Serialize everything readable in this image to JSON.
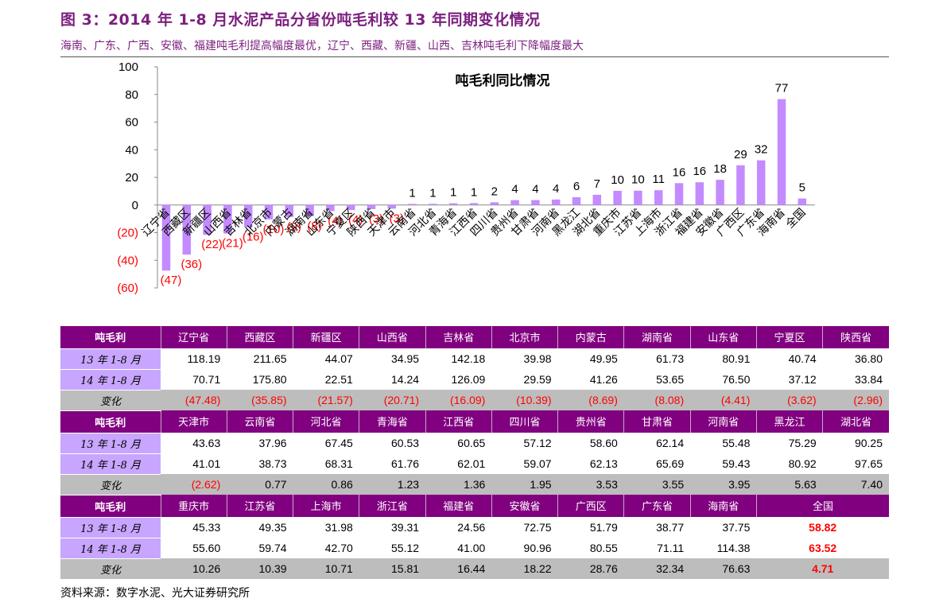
{
  "header": {
    "title": "图 3：2014 年 1-8 月水泥产品分省份吨毛利较 13 年同期变化情况",
    "subtitle": "海南、广东、广西、安徽、福建吨毛利提高幅度最优，辽宁、西藏、新疆、山西、吉林吨毛利下降幅度最大"
  },
  "chart_data": {
    "type": "bar",
    "title": "吨毛利同比情况",
    "xlabel": "",
    "ylabel": "",
    "ylim": [
      -60,
      100
    ],
    "yticks": [
      -60,
      -40,
      -20,
      0,
      20,
      40,
      60,
      80,
      100
    ],
    "ytick_labels": [
      "(60)",
      "(40)",
      "(20)",
      "0",
      "20",
      "40",
      "60",
      "80",
      "100"
    ],
    "grid": false,
    "bar_color": "#c38bff",
    "negative_label_color": "#ff0000",
    "categories": [
      "辽宁省",
      "西藏区",
      "新疆区",
      "山西省",
      "吉林省",
      "北京市",
      "内蒙古",
      "湖南省",
      "山东省",
      "宁夏区",
      "陕西省",
      "天津市",
      "云南省",
      "河北省",
      "青海省",
      "江西省",
      "四川省",
      "贵州省",
      "甘肃省",
      "河南省",
      "黑龙江",
      "湖北省",
      "重庆市",
      "江苏省",
      "上海市",
      "浙江省",
      "福建省",
      "安徽省",
      "广西区",
      "广东省",
      "海南省",
      "全国"
    ],
    "values": [
      -47.48,
      -35.85,
      -21.57,
      -20.71,
      -16.09,
      -10.39,
      -8.69,
      -8.08,
      -4.41,
      -3.62,
      -2.96,
      -2.62,
      0.77,
      0.86,
      1.23,
      1.36,
      1.95,
      3.53,
      3.55,
      3.95,
      5.63,
      7.4,
      10.26,
      10.39,
      10.71,
      15.81,
      16.44,
      18.22,
      28.76,
      32.34,
      76.63,
      4.71
    ],
    "data_labels": [
      "(47)",
      "(36)",
      "(22)",
      "(21)",
      "(16)",
      "(10)",
      "(9)",
      "(8)",
      "(4)",
      "(4)",
      "(3)",
      "(3)",
      "1",
      "1",
      "1",
      "1",
      "2",
      "4",
      "4",
      "4",
      "6",
      "7",
      "10",
      "10",
      "11",
      "16",
      "16",
      "18",
      "29",
      "32",
      "77",
      "5"
    ]
  },
  "table": {
    "groups": [
      {
        "header": [
          "吨毛利",
          "辽宁省",
          "西藏区",
          "新疆区",
          "山西省",
          "吉林省",
          "北京市",
          "内蒙古",
          "湖南省",
          "山东省",
          "宁夏区",
          "陕西省"
        ],
        "rows": [
          {
            "label": "13 年 1-8 月",
            "cells": [
              "118.19",
              "211.65",
              "44.07",
              "34.95",
              "142.18",
              "39.98",
              "49.95",
              "61.73",
              "80.91",
              "40.74",
              "36.80"
            ]
          },
          {
            "label": "14 年 1-8 月",
            "cells": [
              "70.71",
              "175.80",
              "22.51",
              "14.24",
              "126.09",
              "29.59",
              "41.26",
              "53.65",
              "76.50",
              "37.12",
              "33.84"
            ]
          },
          {
            "label": "变化",
            "cells": [
              "(47.48)",
              "(35.85)",
              "(21.57)",
              "(20.71)",
              "(16.09)",
              "(10.39)",
              "(8.69)",
              "(8.08)",
              "(4.41)",
              "(3.62)",
              "(2.96)"
            ]
          }
        ]
      },
      {
        "header": [
          "吨毛利",
          "天津市",
          "云南省",
          "河北省",
          "青海省",
          "江西省",
          "四川省",
          "贵州省",
          "甘肃省",
          "河南省",
          "黑龙江",
          "湖北省"
        ],
        "rows": [
          {
            "label": "13 年 1-8 月",
            "cells": [
              "43.63",
              "37.96",
              "67.45",
              "60.53",
              "60.65",
              "57.12",
              "58.60",
              "62.14",
              "55.48",
              "75.29",
              "90.25"
            ]
          },
          {
            "label": "14 年 1-8 月",
            "cells": [
              "41.01",
              "38.73",
              "68.31",
              "61.76",
              "62.01",
              "59.07",
              "62.13",
              "65.69",
              "59.43",
              "80.92",
              "97.65"
            ]
          },
          {
            "label": "变化",
            "cells": [
              "(2.62)",
              "0.77",
              "0.86",
              "1.23",
              "1.36",
              "1.95",
              "3.53",
              "3.55",
              "3.95",
              "5.63",
              "7.40"
            ]
          }
        ]
      },
      {
        "header": [
          "吨毛利",
          "重庆市",
          "江苏省",
          "上海市",
          "浙江省",
          "福建省",
          "安徽省",
          "广西区",
          "广东省",
          "海南省",
          "全国"
        ],
        "rows": [
          {
            "label": "13 年 1-8 月",
            "cells": [
              "45.33",
              "49.35",
              "31.98",
              "39.31",
              "24.56",
              "72.75",
              "51.79",
              "38.77",
              "37.75",
              "58.82"
            ]
          },
          {
            "label": "14 年 1-8 月",
            "cells": [
              "55.60",
              "59.74",
              "42.70",
              "55.12",
              "41.00",
              "90.96",
              "80.55",
              "71.11",
              "114.38",
              "63.52"
            ]
          },
          {
            "label": "变化",
            "cells": [
              "10.26",
              "10.39",
              "10.71",
              "15.81",
              "16.44",
              "18.22",
              "28.76",
              "32.34",
              "76.63",
              "4.71"
            ]
          }
        ]
      }
    ]
  },
  "footer": {
    "source": "资料来源：数字水泥、光大证券研究所"
  }
}
